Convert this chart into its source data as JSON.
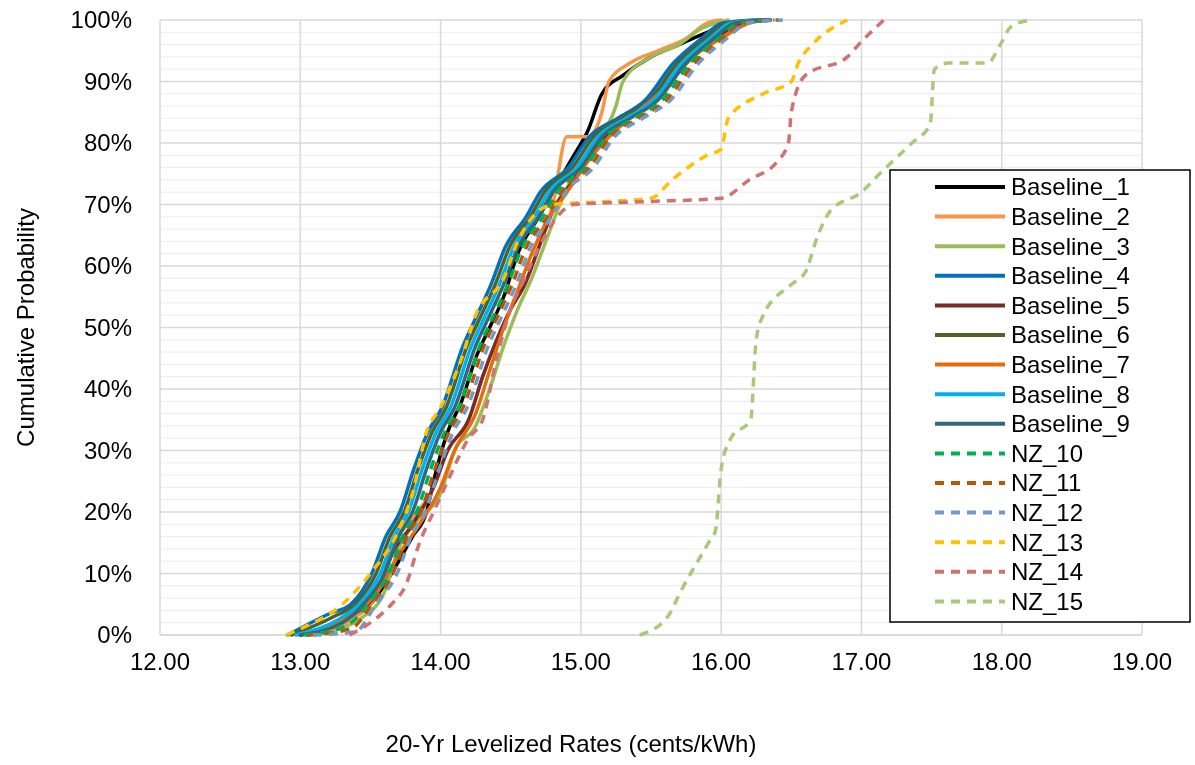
{
  "chart_data": {
    "type": "line",
    "xlabel": "20-Yr Levelized Rates (cents/kWh)",
    "ylabel": "Cumulative Probability",
    "xlim": [
      12,
      19
    ],
    "xticks": [
      {
        "value": 12,
        "label": "12.00"
      },
      {
        "value": 13,
        "label": "13.00"
      },
      {
        "value": 14,
        "label": "14.00"
      },
      {
        "value": 15,
        "label": "15.00"
      },
      {
        "value": 16,
        "label": "16.00"
      },
      {
        "value": 17,
        "label": "17.00"
      },
      {
        "value": 18,
        "label": "18.00"
      },
      {
        "value": 19,
        "label": "19.00"
      }
    ],
    "ylim": [
      0,
      100
    ],
    "yticks": [
      {
        "value": 0,
        "label": "0%"
      },
      {
        "value": 2,
        "label": null
      },
      {
        "value": 4,
        "label": null
      },
      {
        "value": 6,
        "label": null
      },
      {
        "value": 8,
        "label": null
      },
      {
        "value": 10,
        "label": "10%"
      },
      {
        "value": 12,
        "label": null
      },
      {
        "value": 14,
        "label": null
      },
      {
        "value": 16,
        "label": null
      },
      {
        "value": 18,
        "label": null
      },
      {
        "value": 20,
        "label": "20%"
      },
      {
        "value": 22,
        "label": null
      },
      {
        "value": 24,
        "label": null
      },
      {
        "value": 26,
        "label": null
      },
      {
        "value": 28,
        "label": null
      },
      {
        "value": 30,
        "label": "30%"
      },
      {
        "value": 32,
        "label": null
      },
      {
        "value": 34,
        "label": null
      },
      {
        "value": 36,
        "label": null
      },
      {
        "value": 38,
        "label": null
      },
      {
        "value": 40,
        "label": "40%"
      },
      {
        "value": 42,
        "label": null
      },
      {
        "value": 44,
        "label": null
      },
      {
        "value": 46,
        "label": null
      },
      {
        "value": 48,
        "label": null
      },
      {
        "value": 50,
        "label": "50%"
      },
      {
        "value": 52,
        "label": null
      },
      {
        "value": 54,
        "label": null
      },
      {
        "value": 56,
        "label": null
      },
      {
        "value": 58,
        "label": null
      },
      {
        "value": 60,
        "label": "60%"
      },
      {
        "value": 62,
        "label": null
      },
      {
        "value": 64,
        "label": null
      },
      {
        "value": 66,
        "label": null
      },
      {
        "value": 68,
        "label": null
      },
      {
        "value": 70,
        "label": "70%"
      },
      {
        "value": 72,
        "label": null
      },
      {
        "value": 74,
        "label": null
      },
      {
        "value": 76,
        "label": null
      },
      {
        "value": 78,
        "label": null
      },
      {
        "value": 80,
        "label": "80%"
      },
      {
        "value": 82,
        "label": null
      },
      {
        "value": 84,
        "label": null
      },
      {
        "value": 86,
        "label": null
      },
      {
        "value": 88,
        "label": null
      },
      {
        "value": 90,
        "label": "90%"
      },
      {
        "value": 92,
        "label": null
      },
      {
        "value": 94,
        "label": null
      },
      {
        "value": 96,
        "label": null
      },
      {
        "value": 98,
        "label": null
      },
      {
        "value": 100,
        "label": "100%"
      }
    ],
    "grid": true,
    "legend": "right",
    "marker": "none",
    "series": [
      {
        "name": "Baseline_1",
        "color": "#000000",
        "line_style": "solid",
        "x": [
          13.0,
          13.3,
          13.5,
          13.65,
          13.8,
          13.9,
          13.95,
          14.05,
          14.15,
          14.25,
          14.35,
          14.45,
          14.55,
          14.7,
          14.85,
          14.95,
          15.05,
          15.15,
          15.3,
          15.5,
          15.7,
          15.9,
          16.1,
          16.35
        ],
        "values": [
          0,
          2,
          5,
          10,
          16,
          20,
          25,
          33,
          38,
          45,
          50,
          55,
          62,
          68,
          74,
          78,
          82,
          88,
          91,
          94,
          96,
          98,
          99.5,
          100
        ]
      },
      {
        "name": "Baseline_2",
        "color": "#f79646",
        "line_style": "solid",
        "x": [
          13.05,
          13.4,
          13.55,
          13.65,
          13.8,
          13.95,
          14.05,
          14.2,
          14.3,
          14.4,
          14.5,
          14.6,
          14.7,
          14.8,
          14.9,
          15.05,
          15.15,
          15.2,
          15.35,
          15.55,
          15.75,
          15.9,
          16.0
        ],
        "values": [
          0,
          3,
          7,
          14,
          19,
          24,
          30,
          35,
          42,
          48,
          53,
          57,
          63,
          70,
          81,
          81,
          85,
          90,
          93,
          95,
          97,
          99.5,
          100
        ]
      },
      {
        "name": "Baseline_3",
        "color": "#9bbb59",
        "line_style": "solid",
        "x": [
          13.1,
          13.45,
          13.6,
          13.7,
          13.85,
          14.0,
          14.1,
          14.25,
          14.35,
          14.45,
          14.55,
          14.65,
          14.75,
          14.85,
          14.95,
          15.1,
          15.25,
          15.3,
          15.5,
          15.7,
          15.85,
          16.05
        ],
        "values": [
          0,
          3,
          7,
          14,
          19,
          23,
          30,
          34,
          40,
          47,
          53,
          58,
          64,
          70,
          75,
          80,
          86,
          90,
          94,
          96,
          98.5,
          100
        ]
      },
      {
        "name": "Baseline_4",
        "color": "#0070c0",
        "line_style": "solid",
        "x": [
          12.91,
          13.21,
          13.36,
          13.51,
          13.61,
          13.71,
          13.81,
          13.91,
          14.01,
          14.16,
          14.26,
          14.36,
          14.46,
          14.61,
          14.71,
          14.91,
          15.06,
          15.26,
          15.46,
          15.66,
          15.86,
          16.01,
          16.26
        ],
        "values": [
          0,
          3.5,
          5,
          10,
          16,
          20,
          27,
          33,
          37,
          47,
          52,
          57,
          63,
          68,
          72,
          76,
          81,
          84,
          87,
          93,
          97,
          99.5,
          100
        ]
      },
      {
        "name": "Baseline_5",
        "color": "#772c2a",
        "line_style": "solid",
        "x": [
          13.05,
          13.35,
          13.55,
          13.65,
          13.8,
          13.95,
          14.05,
          14.2,
          14.3,
          14.4,
          14.5,
          14.6,
          14.7,
          14.8,
          14.95,
          15.1,
          15.3,
          15.5,
          15.7,
          15.9,
          16.1,
          16.3
        ],
        "values": [
          0,
          3,
          7,
          13,
          18,
          24,
          30,
          35,
          42,
          48,
          53,
          57,
          63,
          69,
          74,
          79,
          84,
          87,
          92,
          96,
          99,
          100
        ]
      },
      {
        "name": "Baseline_6",
        "color": "#4f6228",
        "line_style": "solid",
        "x": [
          12.94,
          13.24,
          13.39,
          13.54,
          13.64,
          13.74,
          13.84,
          13.94,
          14.04,
          14.19,
          14.29,
          14.39,
          14.49,
          14.64,
          14.74,
          14.94,
          15.09,
          15.29,
          15.49,
          15.69,
          15.89,
          16.04,
          16.29
        ],
        "values": [
          0,
          3,
          5,
          10,
          16,
          20,
          27,
          33,
          37,
          47,
          52,
          57,
          63,
          68,
          72,
          76,
          81,
          84,
          87,
          93,
          97,
          99.5,
          100
        ]
      },
      {
        "name": "Baseline_7",
        "color": "#e46c0a",
        "line_style": "solid",
        "x": [
          13.05,
          13.35,
          13.55,
          13.7,
          13.85,
          14.0,
          14.1,
          14.25,
          14.35,
          14.45,
          14.55,
          14.65,
          14.75,
          14.9,
          15.05,
          15.2,
          15.4,
          15.6,
          15.8,
          16.0,
          16.2,
          16.35
        ],
        "values": [
          0,
          3,
          7,
          13,
          18,
          24,
          30,
          36,
          43,
          50,
          56,
          62,
          67,
          72,
          77,
          81,
          85,
          89,
          94,
          97,
          99.5,
          100
        ]
      },
      {
        "name": "Baseline_8",
        "color": "#00b0f0",
        "line_style": "solid",
        "x": [
          12.97,
          13.27,
          13.42,
          13.57,
          13.67,
          13.77,
          13.87,
          13.97,
          14.07,
          14.22,
          14.32,
          14.42,
          14.52,
          14.67,
          14.77,
          14.97,
          15.12,
          15.32,
          15.52,
          15.72,
          15.92,
          16.07,
          16.32
        ],
        "values": [
          0,
          2.5,
          5,
          10,
          16,
          20,
          27,
          33,
          37,
          47,
          52,
          57,
          63,
          68,
          72,
          76,
          81,
          84,
          87,
          93,
          97,
          99.5,
          100
        ]
      },
      {
        "name": "Baseline_9",
        "color": "#31697a",
        "line_style": "solid",
        "x": [
          13.0,
          13.3,
          13.45,
          13.6,
          13.7,
          13.8,
          13.9,
          14.0,
          14.1,
          14.25,
          14.35,
          14.45,
          14.55,
          14.7,
          14.8,
          15.0,
          15.15,
          15.35,
          15.55,
          15.75,
          15.95,
          16.1,
          16.35
        ],
        "values": [
          0,
          2,
          5,
          10,
          16,
          20,
          27,
          33,
          37,
          47,
          52,
          57,
          63,
          68,
          72,
          76,
          81,
          84,
          87,
          93,
          97,
          99.5,
          100
        ]
      },
      {
        "name": "NZ_10",
        "color": "#00b050",
        "line_style": "dashed",
        "x": [
          13.03,
          13.33,
          13.48,
          13.63,
          13.73,
          13.83,
          13.93,
          14.03,
          14.13,
          14.28,
          14.38,
          14.48,
          14.58,
          14.73,
          14.83,
          15.03,
          15.18,
          15.38,
          15.58,
          15.78,
          15.98,
          16.13,
          16.38
        ],
        "values": [
          0,
          1.5,
          5,
          10,
          16,
          20,
          27,
          33,
          37,
          47,
          52,
          57,
          63,
          68,
          72,
          76,
          81,
          84,
          87,
          93,
          97,
          99.5,
          100
        ]
      },
      {
        "name": "NZ_11",
        "color": "#b65708",
        "line_style": "dashed",
        "x": [
          13.06,
          13.36,
          13.51,
          13.66,
          13.76,
          13.86,
          13.96,
          14.06,
          14.16,
          14.31,
          14.41,
          14.51,
          14.61,
          14.76,
          14.86,
          15.06,
          15.21,
          15.41,
          15.61,
          15.81,
          16.01,
          16.16,
          16.41
        ],
        "values": [
          0,
          1,
          5,
          10,
          16,
          20,
          27,
          33,
          37,
          47,
          52,
          57,
          63,
          68,
          72,
          76,
          81,
          84,
          87,
          93,
          97,
          99.5,
          100
        ]
      },
      {
        "name": "NZ_12",
        "color": "#7399c6",
        "line_style": "dashed",
        "x": [
          13.09,
          13.39,
          13.54,
          13.69,
          13.79,
          13.89,
          13.99,
          14.09,
          14.19,
          14.34,
          14.44,
          14.54,
          14.64,
          14.79,
          14.89,
          15.09,
          15.24,
          15.44,
          15.64,
          15.84,
          16.04,
          16.19,
          16.44
        ],
        "values": [
          0,
          0.5,
          5,
          10,
          16,
          20,
          27,
          33,
          37,
          47,
          52,
          57,
          63,
          68,
          72,
          76,
          81,
          84,
          87,
          93,
          97,
          99.5,
          100
        ]
      },
      {
        "name": "NZ_13",
        "color": "#ffc000",
        "line_style": "dashed",
        "x": [
          12.9,
          13.0,
          13.3,
          13.5,
          13.7,
          13.8,
          13.9,
          14.0,
          14.15,
          14.25,
          14.45,
          14.55,
          14.7,
          14.8,
          15.2,
          15.5,
          15.65,
          15.9,
          16.0,
          16.05,
          16.3,
          16.5,
          16.55,
          16.65,
          16.9
        ],
        "values": [
          0,
          1,
          5,
          10,
          17,
          23,
          33,
          37,
          45,
          52,
          58,
          64,
          69,
          70,
          70.5,
          71,
          74,
          78,
          79,
          84,
          88,
          90,
          93,
          96,
          100
        ]
      },
      {
        "name": "NZ_14",
        "color": "#d07272",
        "line_style": "dashed",
        "x": [
          13.35,
          13.5,
          13.65,
          13.75,
          13.85,
          13.95,
          14.05,
          14.2,
          14.3,
          14.4,
          14.5,
          14.6,
          14.7,
          14.8,
          14.95,
          15.5,
          16.0,
          16.2,
          16.4,
          16.48,
          16.5,
          16.6,
          16.9,
          16.98,
          17.16
        ],
        "values": [
          0,
          2,
          5,
          8,
          15,
          20,
          25,
          32,
          35,
          45,
          53,
          58,
          63,
          67,
          70,
          70.5,
          71,
          74,
          77,
          80,
          85,
          91,
          94,
          96,
          100
        ]
      },
      {
        "name": "NZ_15",
        "color": "#a9c97a",
        "line_style": "dashed",
        "x": [
          15.42,
          15.62,
          15.71,
          15.91,
          15.96,
          16.0,
          16.07,
          16.21,
          16.25,
          16.3,
          16.5,
          16.6,
          16.69,
          16.78,
          17.0,
          17.13,
          17.36,
          17.49,
          17.52,
          17.62,
          17.9,
          17.99,
          18.07,
          18.21
        ],
        "values": [
          0,
          3,
          7,
          15,
          17,
          27,
          32,
          35,
          48,
          52,
          57,
          59,
          65,
          69,
          72,
          75,
          80,
          83,
          92,
          93,
          93,
          96,
          99,
          100
        ]
      }
    ]
  }
}
